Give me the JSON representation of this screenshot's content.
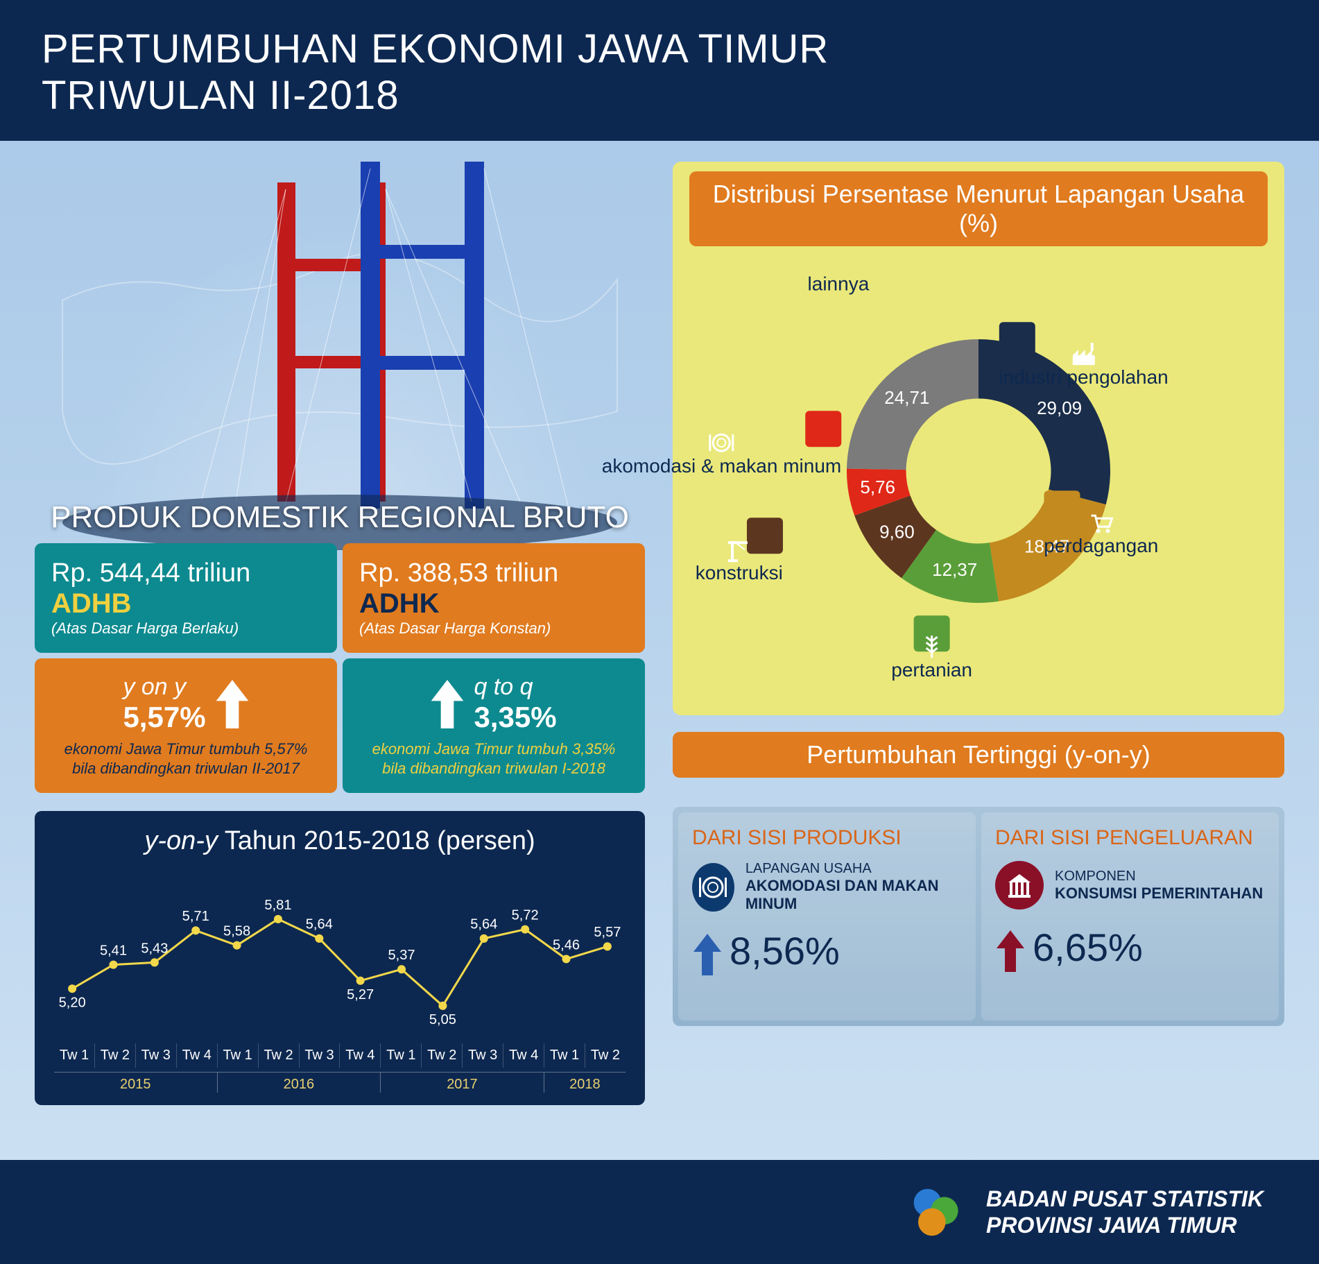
{
  "header": {
    "line1": "PERTUMBUHAN EKONOMI JAWA TIMUR",
    "line2": "TRIWULAN II-2018"
  },
  "pdrb": {
    "title": "PRODUK DOMESTIK REGIONAL BRUTO",
    "adhb": {
      "value": "Rp. 544,44 triliun",
      "abbr": "ADHB",
      "sub": "(Atas Dasar Harga Berlaku)",
      "bg": "#0d8a8f",
      "abbr_color": "#f0d040"
    },
    "adhk": {
      "value": "Rp. 388,53 triliun",
      "abbr": "ADHK",
      "sub": "(Atas Dasar Harga Konstan)",
      "bg": "#e07b1f",
      "abbr_color": "#0d2850"
    },
    "yoy": {
      "label": "y on y",
      "pct": "5,57%",
      "desc": "ekonomi Jawa Timur tumbuh 5,57% bila dibandingkan triwulan II-2017",
      "bg": "#e07b1f",
      "arrow": "#ffffff"
    },
    "qtq": {
      "label": "q to q",
      "pct": "3,35%",
      "desc": "ekonomi Jawa Timur tumbuh 3,35% bila dibandingkan triwulan I-2018",
      "bg": "#0d8a8f",
      "arrow": "#ffffff"
    }
  },
  "line_chart": {
    "title_italic": "y-on-y",
    "title_rest": " Tahun 2015-2018 (persen)",
    "type": "line",
    "quarters": [
      "Tw 1",
      "Tw 2",
      "Tw 3",
      "Tw 4",
      "Tw 1",
      "Tw 2",
      "Tw 3",
      "Tw 4",
      "Tw 1",
      "Tw 2",
      "Tw 3",
      "Tw 4",
      "Tw 1",
      "Tw 2"
    ],
    "years": [
      {
        "label": "2015",
        "span": 4
      },
      {
        "label": "2016",
        "span": 4
      },
      {
        "label": "2017",
        "span": 4
      },
      {
        "label": "2018",
        "span": 2
      }
    ],
    "values": [
      5.2,
      5.41,
      5.43,
      5.71,
      5.58,
      5.81,
      5.64,
      5.27,
      5.37,
      5.05,
      5.64,
      5.72,
      5.46,
      5.57
    ],
    "labels": [
      "5,20",
      "5,41",
      "5,43",
      "5,71",
      "5,58",
      "5,81",
      "5,64",
      "5,27",
      "5,37",
      "5,05",
      "5,64",
      "5,72",
      "5,46",
      "5,57"
    ],
    "ylim": [
      4.9,
      6.0
    ],
    "marker_color": "#f2d84a",
    "line_color": "#f2d84a",
    "bg": "#0d2850",
    "value_label_color": "#ffffff",
    "year_label_color": "#e8d070",
    "line_width": 3,
    "marker_radius": 6
  },
  "donut": {
    "title": "Distribusi Persentase Menurut Lapangan Usaha (%)",
    "type": "donut",
    "inner_ratio": 0.55,
    "bg": "#eae87a",
    "segments": [
      {
        "label": "industri pengolahan",
        "value": 29.09,
        "value_label": "29,09",
        "color": "#1a2d4a",
        "icon": "factory"
      },
      {
        "label": "perdagangan",
        "value": 18.47,
        "value_label": "18,47",
        "color": "#c38a1f",
        "icon": "cart"
      },
      {
        "label": "pertanian",
        "value": 12.37,
        "value_label": "12,37",
        "color": "#5a9e3a",
        "icon": "wheat"
      },
      {
        "label": "konstruksi",
        "value": 9.6,
        "value_label": "9,60",
        "color": "#5d3620",
        "icon": "crane"
      },
      {
        "label": "akomodasi & makan minum",
        "value": 5.76,
        "value_label": "5,76",
        "color": "#e02818",
        "icon": "plate"
      },
      {
        "label": "lainnya",
        "value": 24.71,
        "value_label": "24,71",
        "color": "#7b7b7b",
        "icon": null
      }
    ]
  },
  "tertinggi": {
    "title": "Pertumbuhan Tertinggi (y-on-y)",
    "produksi": {
      "header": "DARI SISI PRODUKSI",
      "sub": "LAPANGAN USAHA",
      "name": "AKOMODASI DAN MAKAN MINUM",
      "pct": "8,56%",
      "icon_bg": "#0d3a6e",
      "arrow_color": "#2a5fb0"
    },
    "pengeluaran": {
      "header": "DARI SISI PENGELUARAN",
      "sub": "KOMPONEN",
      "name": "KONSUMSI PEMERINTAHAN",
      "pct": "6,65%",
      "icon_bg": "#8a1028",
      "arrow_color": "#8a1028"
    }
  },
  "footer": {
    "line1": "BADAN PUSAT STATISTIK",
    "line2": "PROVINSI JAWA TIMUR"
  }
}
